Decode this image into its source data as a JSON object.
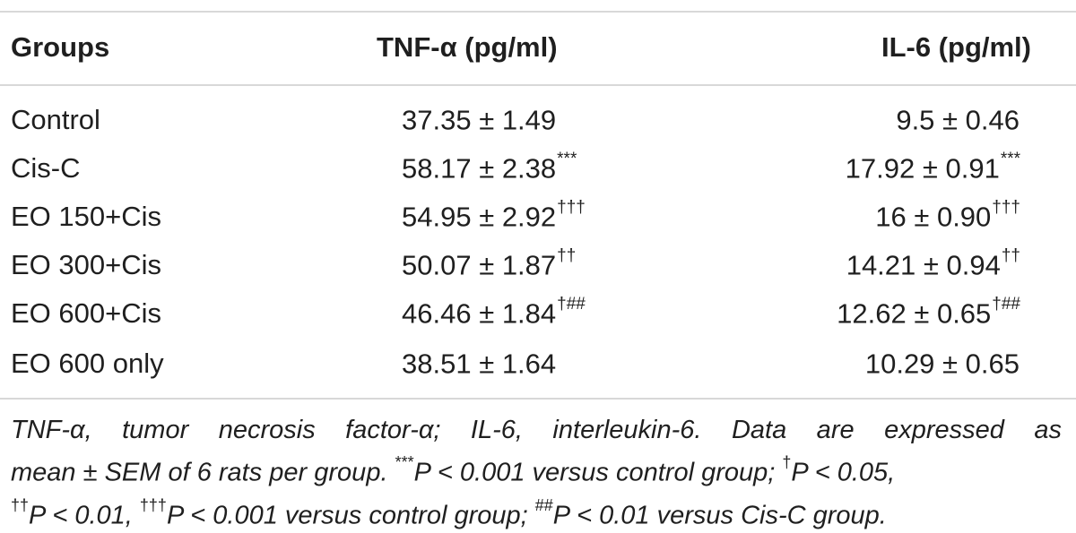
{
  "table": {
    "headers": {
      "groups": "Groups",
      "tnf": "TNF-α (pg/ml)",
      "il6": "IL-6 (pg/ml)"
    },
    "rows": [
      {
        "group": "Control",
        "tnf": "37.35 ± 1.49",
        "tnf_mark": "",
        "il6": "9.5 ± 0.46",
        "il6_mark": ""
      },
      {
        "group": "Cis-C",
        "tnf": "58.17 ± 2.38",
        "tnf_mark": "***",
        "il6": "17.92 ± 0.91",
        "il6_mark": "***"
      },
      {
        "group": "EO 150+Cis",
        "tnf": "54.95 ± 2.92",
        "tnf_mark": "†††",
        "il6": "16 ± 0.90",
        "il6_mark": "†††"
      },
      {
        "group": "EO 300+Cis",
        "tnf": "50.07 ± 1.87",
        "tnf_mark": "††",
        "il6": "14.21 ± 0.94",
        "il6_mark": "††"
      },
      {
        "group": "EO 600+Cis",
        "tnf": "46.46 ± 1.84",
        "tnf_mark": "†##",
        "il6": "12.62 ± 0.65",
        "il6_mark": "†##"
      },
      {
        "group": "EO 600 only",
        "tnf": "38.51 ± 1.64",
        "tnf_mark": "",
        "il6": "10.29 ± 0.65",
        "il6_mark": ""
      }
    ]
  },
  "footnote": {
    "line1": "TNF-α, tumor necrosis factor-α; IL-6, interleukin-6. Data are expressed as",
    "line2_a": "mean ± SEM of 6 rats per group. ",
    "line2_sup1": "***",
    "line2_b": "P < 0.001 versus control group; ",
    "line2_sup2": "†",
    "line2_c": "P < 0.05,",
    "line3_sup1": "††",
    "line3_a": "P < 0.01, ",
    "line3_sup2": "†††",
    "line3_b": "P < 0.001 versus control group; ",
    "line3_sup3": "##",
    "line3_c": "P < 0.01 versus Cis-C group."
  }
}
